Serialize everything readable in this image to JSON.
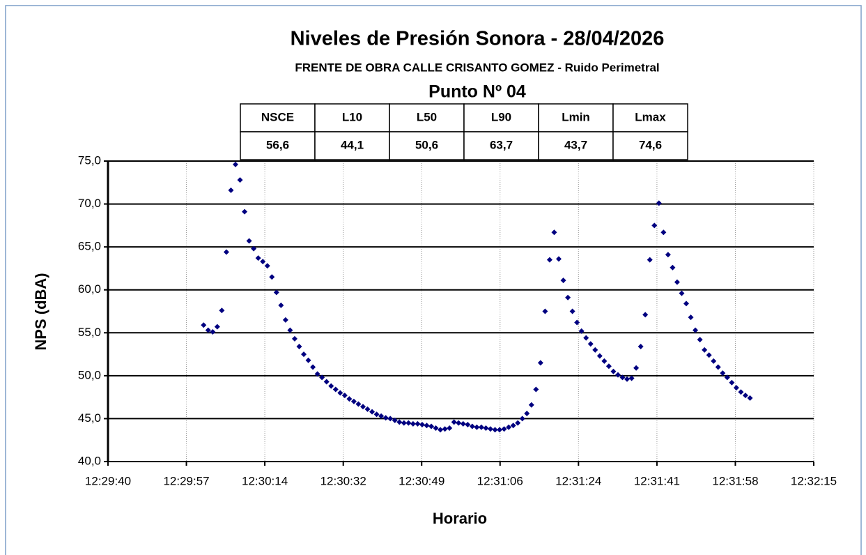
{
  "chart_data": {
    "type": "scatter",
    "title": "Niveles de Presión Sonora - 28/04/2026",
    "subtitle": "FRENTE DE OBRA CALLE CRISANTO GOMEZ - Ruido Perimetral",
    "point_label": "Punto Nº 04",
    "stats_table": {
      "headers": [
        "NSCE",
        "L10",
        "L50",
        "L90",
        "Lmin",
        "Lmax"
      ],
      "cells": [
        "56,6",
        "44,1",
        "50,6",
        "63,7",
        "43,7",
        "74,6"
      ]
    },
    "xlabel": "Horario",
    "ylabel": "NPS (dBA)",
    "color": "#000080",
    "grid": true,
    "xlim": [
      44980,
      45135
    ],
    "ylim": [
      40,
      75
    ],
    "xticks": [
      {
        "value": 44980,
        "label": "12:29:40"
      },
      {
        "value": 44997.22,
        "label": "12:29:57"
      },
      {
        "value": 45014.44,
        "label": "12:30:14"
      },
      {
        "value": 45031.67,
        "label": "12:30:32"
      },
      {
        "value": 45048.89,
        "label": "12:30:49"
      },
      {
        "value": 45066.11,
        "label": "12:31:06"
      },
      {
        "value": 45083.33,
        "label": "12:31:24"
      },
      {
        "value": 45100.56,
        "label": "12:31:41"
      },
      {
        "value": 45117.78,
        "label": "12:31:58"
      },
      {
        "value": 45135,
        "label": "12:32:15"
      }
    ],
    "yticks": [
      {
        "value": 40,
        "label": "40,0"
      },
      {
        "value": 45,
        "label": "45,0"
      },
      {
        "value": 50,
        "label": "50,0"
      },
      {
        "value": 55,
        "label": "55,0"
      },
      {
        "value": 60,
        "label": "60,0"
      },
      {
        "value": 65,
        "label": "65,0"
      },
      {
        "value": 70,
        "label": "70,0"
      },
      {
        "value": 75,
        "label": "75,0"
      }
    ],
    "x": [
      45001,
      45002,
      45003,
      45004,
      45005,
      45006,
      45007,
      45008,
      45009,
      45010,
      45011,
      45012,
      45013,
      45014,
      45015,
      45016,
      45017,
      45018,
      45019,
      45020,
      45021,
      45022,
      45023,
      45024,
      45025,
      45026,
      45027,
      45028,
      45029,
      45030,
      45031,
      45032,
      45033,
      45034,
      45035,
      45036,
      45037,
      45038,
      45039,
      45040,
      45041,
      45042,
      45043,
      45044,
      45045,
      45046,
      45047,
      45048,
      45049,
      45050,
      45051,
      45052,
      45053,
      45054,
      45055,
      45056,
      45057,
      45058,
      45059,
      45060,
      45061,
      45062,
      45063,
      45064,
      45065,
      45066,
      45067,
      45068,
      45069,
      45070,
      45071,
      45072,
      45073,
      45074,
      45075,
      45076,
      45077,
      45078,
      45079,
      45080,
      45081,
      45082,
      45083,
      45084,
      45085,
      45086,
      45087,
      45088,
      45089,
      45090,
      45091,
      45092,
      45093,
      45094,
      45095,
      45096,
      45097,
      45098,
      45099,
      45100,
      45101,
      45102,
      45103,
      45104,
      45105,
      45106,
      45107,
      45108,
      45109,
      45110,
      45111,
      45112,
      45113,
      45114,
      45115,
      45116,
      45117,
      45118,
      45119,
      45120,
      45121
    ],
    "values": [
      55.9,
      55.3,
      55.1,
      55.7,
      57.6,
      64.4,
      71.6,
      74.6,
      72.8,
      69.1,
      65.7,
      64.8,
      63.7,
      63.3,
      62.8,
      61.5,
      59.7,
      58.2,
      56.5,
      55.3,
      54.3,
      53.4,
      52.5,
      51.8,
      51.0,
      50.2,
      49.8,
      49.3,
      48.8,
      48.4,
      48.0,
      47.7,
      47.3,
      47.0,
      46.7,
      46.4,
      46.1,
      45.8,
      45.5,
      45.3,
      45.1,
      45.0,
      44.8,
      44.6,
      44.5,
      44.5,
      44.4,
      44.4,
      44.3,
      44.2,
      44.1,
      43.9,
      43.7,
      43.8,
      43.9,
      44.6,
      44.5,
      44.4,
      44.3,
      44.1,
      44.0,
      44.0,
      43.9,
      43.8,
      43.7,
      43.7,
      43.8,
      44.0,
      44.2,
      44.5,
      45.0,
      45.6,
      46.6,
      48.4,
      51.5,
      57.5,
      63.5,
      66.7,
      63.6,
      61.1,
      59.1,
      57.5,
      56.2,
      55.2,
      54.4,
      53.7,
      53.0,
      52.3,
      51.7,
      51.1,
      50.5,
      50.1,
      49.8,
      49.6,
      49.7,
      50.9,
      53.4,
      57.1,
      63.5,
      67.5,
      70.1,
      66.7,
      64.1,
      62.6,
      60.9,
      59.6,
      58.4,
      56.8,
      55.3,
      54.2,
      53.0,
      52.4,
      51.7,
      51.0,
      50.3,
      49.8,
      49.2,
      48.6,
      48.1,
      47.7,
      47.4
    ]
  }
}
